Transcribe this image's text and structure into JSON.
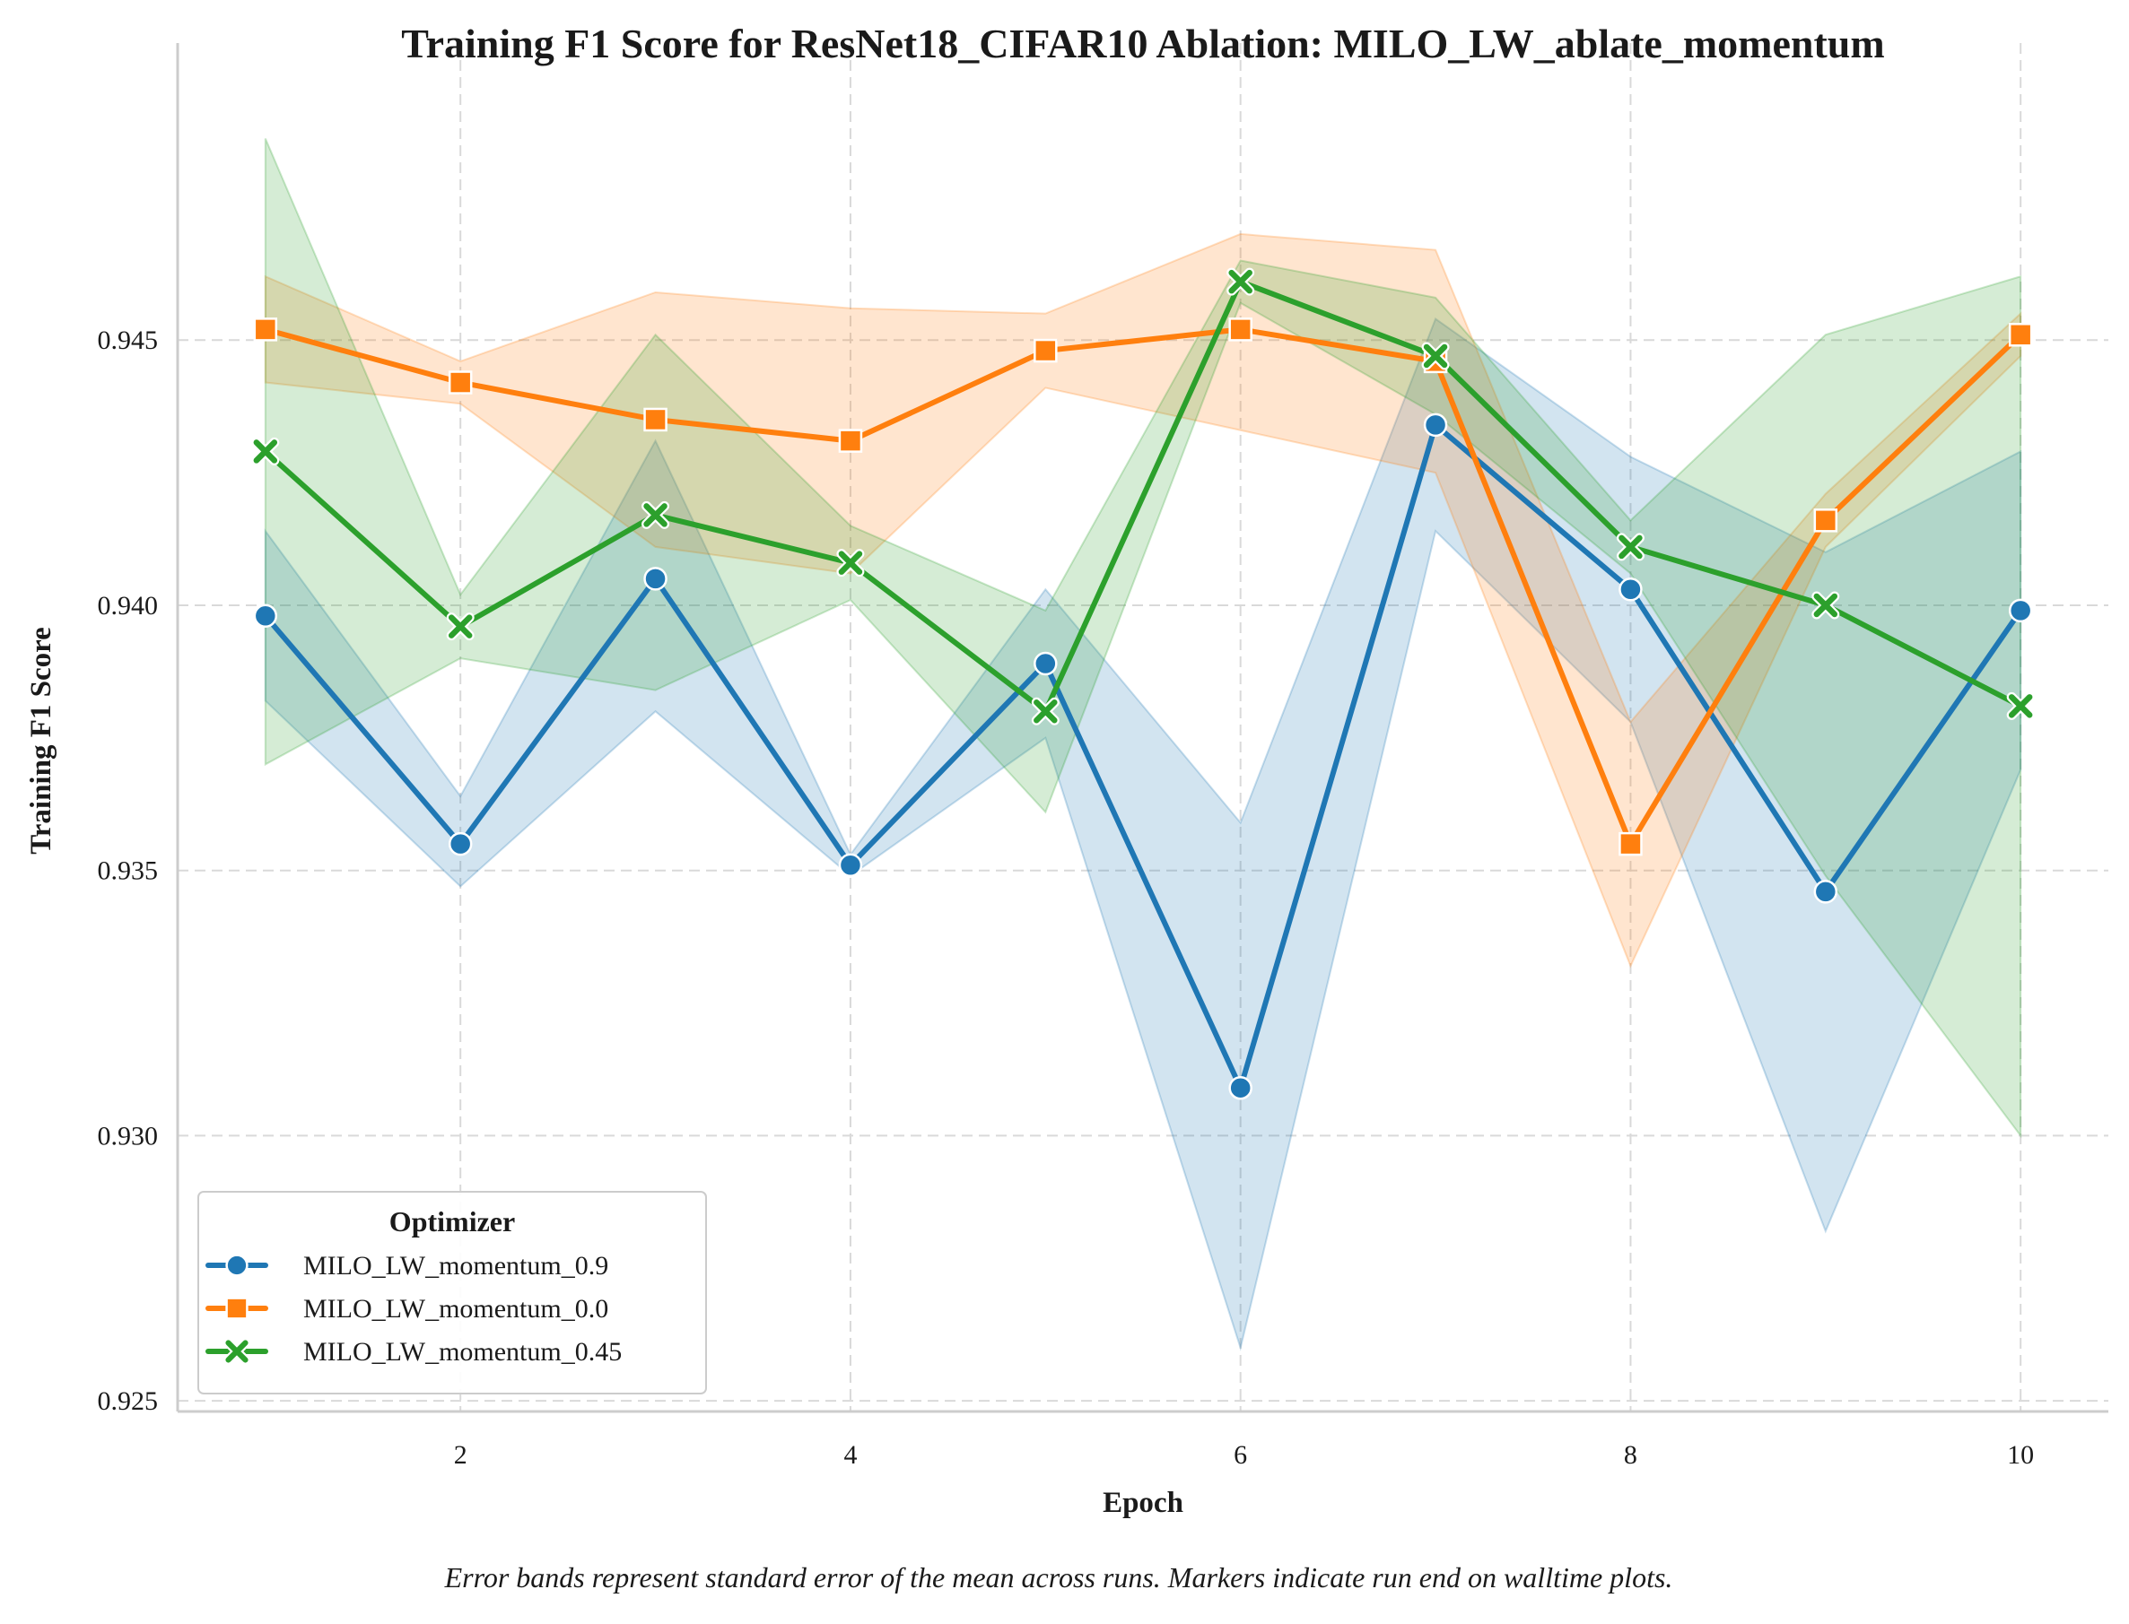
{
  "chart_data": {
    "type": "line",
    "title": "Training F1 Score for ResNet18_CIFAR10 Ablation: MILO_LW_ablate_momentum",
    "xlabel": "Epoch",
    "ylabel": "Training F1 Score",
    "caption": "Error bands represent standard error of the mean across runs. Markers indicate run end on walltime plots.",
    "xlim": [
      0.55,
      10.45
    ],
    "ylim": [
      0.9248,
      0.9506
    ],
    "xticks": [
      2,
      4,
      6,
      8,
      10
    ],
    "xtick_labels": [
      "2",
      "4",
      "6",
      "8",
      "10"
    ],
    "yticks": [
      0.925,
      0.93,
      0.935,
      0.94,
      0.945
    ],
    "ytick_labels": [
      "0.925",
      "0.930",
      "0.935",
      "0.940",
      "0.945"
    ],
    "grid": true,
    "legend": {
      "title": "Optimizer",
      "placement": "lower-left"
    },
    "x": [
      1,
      2,
      3,
      4,
      5,
      6,
      7,
      8,
      9,
      10
    ],
    "series": [
      {
        "name": "MILO_LW_momentum_0.9",
        "color": "#1f77b4",
        "marker": "circle",
        "values": [
          0.9398,
          0.9355,
          0.9405,
          0.9351,
          0.9389,
          0.9309,
          0.9434,
          0.9403,
          0.9346,
          0.9399
        ],
        "lower": [
          0.9382,
          0.9347,
          0.938,
          0.9349,
          0.9375,
          0.926,
          0.9414,
          0.9378,
          0.9282,
          0.9369
        ],
        "upper": [
          0.9414,
          0.9364,
          0.9431,
          0.9353,
          0.9403,
          0.9359,
          0.9454,
          0.9428,
          0.941,
          0.9429
        ]
      },
      {
        "name": "MILO_LW_momentum_0.0",
        "color": "#ff7f0e",
        "marker": "square",
        "values": [
          0.9452,
          0.9442,
          0.9435,
          0.9431,
          0.9448,
          0.9452,
          0.9446,
          0.9355,
          0.9416,
          0.9451
        ],
        "lower": [
          0.9442,
          0.9438,
          0.9411,
          0.9406,
          0.9441,
          0.9433,
          0.9425,
          0.9332,
          0.9411,
          0.9447
        ],
        "upper": [
          0.9462,
          0.9446,
          0.9459,
          0.9456,
          0.9455,
          0.947,
          0.9467,
          0.9378,
          0.9421,
          0.9455
        ]
      },
      {
        "name": "MILO_LW_momentum_0.45",
        "color": "#2ca02c",
        "marker": "x",
        "values": [
          0.9429,
          0.9396,
          0.9417,
          0.9408,
          0.938,
          0.9461,
          0.9447,
          0.9411,
          0.94,
          0.9381
        ],
        "lower": [
          0.937,
          0.939,
          0.9384,
          0.9401,
          0.9361,
          0.9457,
          0.9436,
          0.9406,
          0.9349,
          0.93
        ],
        "upper": [
          0.9488,
          0.9402,
          0.9451,
          0.9415,
          0.9399,
          0.9465,
          0.9458,
          0.9416,
          0.9451,
          0.9462
        ]
      }
    ]
  }
}
